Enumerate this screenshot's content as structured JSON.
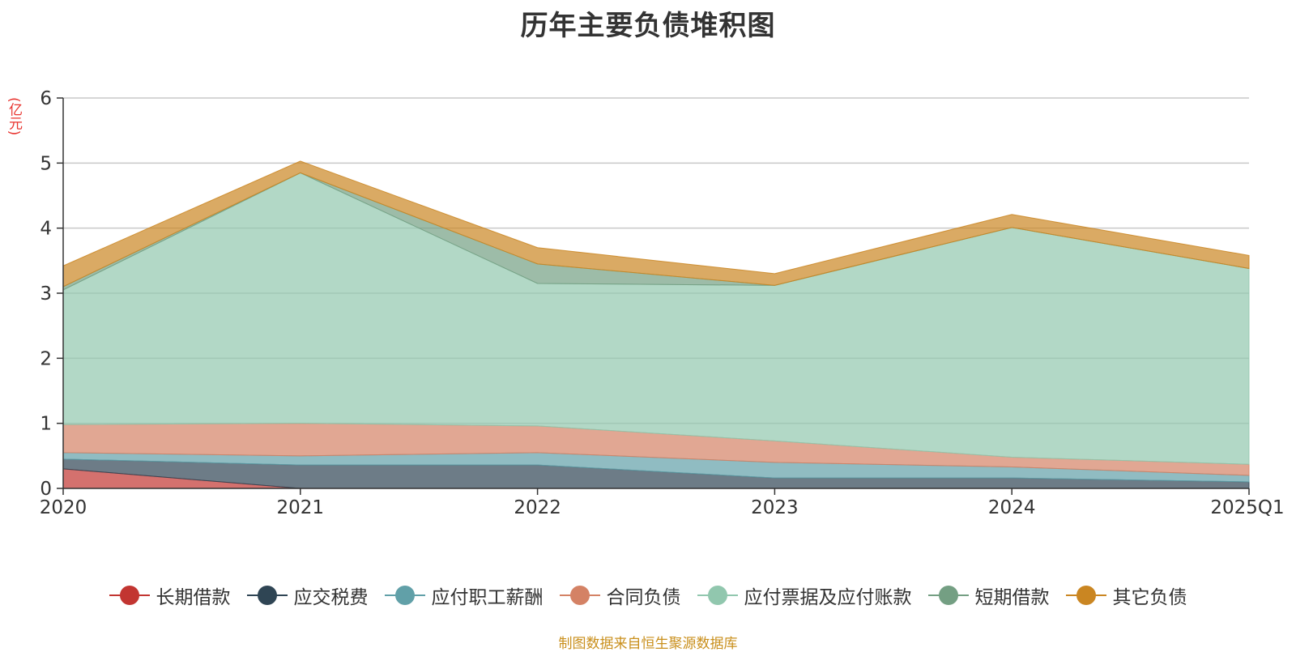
{
  "chart_data": {
    "type": "area",
    "stacked": true,
    "title": "历年主要负债堆积图",
    "ylabel": "(亿元)",
    "categories": [
      "2020",
      "2021",
      "2022",
      "2023",
      "2024",
      "2025Q1"
    ],
    "ylim": [
      0,
      6
    ],
    "yticks": [
      0,
      1,
      2,
      3,
      4,
      5,
      6
    ],
    "grid": true,
    "legend_position": "bottom",
    "series": [
      {
        "name": "长期借款",
        "color": "#c23531",
        "values": [
          0.3,
          0.0,
          0.0,
          0.0,
          0.0,
          0.0
        ]
      },
      {
        "name": "应交税费",
        "color": "#2f4554",
        "values": [
          0.15,
          0.36,
          0.36,
          0.16,
          0.16,
          0.1
        ]
      },
      {
        "name": "应付职工薪酬",
        "color": "#61a0a8",
        "values": [
          0.1,
          0.14,
          0.19,
          0.24,
          0.17,
          0.1
        ]
      },
      {
        "name": "合同负债",
        "color": "#d48265",
        "values": [
          0.43,
          0.5,
          0.41,
          0.33,
          0.15,
          0.17
        ]
      },
      {
        "name": "应付票据及应付账款",
        "color": "#91c7ae",
        "values": [
          2.07,
          3.85,
          2.19,
          2.39,
          3.53,
          3.01
        ]
      },
      {
        "name": "短期借款",
        "color": "#749f83",
        "values": [
          0.05,
          0.0,
          0.3,
          0.0,
          0.0,
          0.0
        ]
      },
      {
        "name": "其它负债",
        "color": "#ca8622",
        "values": [
          0.32,
          0.18,
          0.25,
          0.18,
          0.2,
          0.2
        ]
      }
    ]
  },
  "source_note": "制图数据来自恒生聚源数据库"
}
